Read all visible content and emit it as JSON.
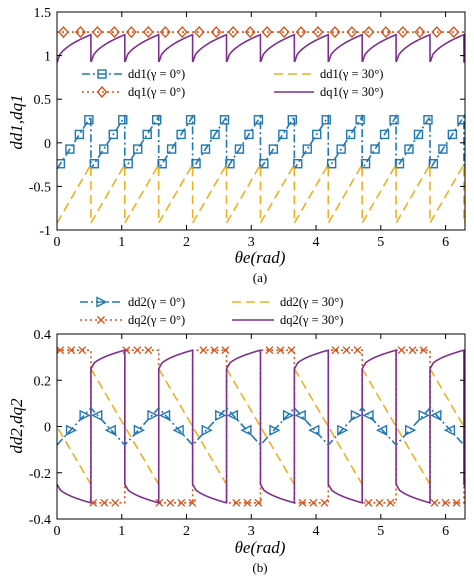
{
  "chart_data": [
    {
      "type": "line",
      "panel_label": "(a)",
      "xlabel": "θe(rad)",
      "ylabel": "dd1,dq1",
      "xlim": [
        0,
        6.3
      ],
      "ylim": [
        -1,
        1.5
      ],
      "xticks": [
        "0",
        "1",
        "2",
        "3",
        "4",
        "5",
        "6"
      ],
      "yticks": [
        "-1",
        "-0.5",
        "0",
        "0.5",
        "1",
        "1.5"
      ],
      "grid": false,
      "legend_placement": "middle",
      "sector_period_rad": 0.5236,
      "series": [
        {
          "name": "dd1(γ = 0°)",
          "color": "#1f77b4",
          "style": "dashdot",
          "marker": "square",
          "sector_start": -0.3,
          "sector_end": 0.3,
          "sector_offset": 0.0
        },
        {
          "name": "dq1(γ = 0°)",
          "color": "#d9541a",
          "style": "dotted",
          "marker": "diamond",
          "constant": 1.27
        },
        {
          "name": "dd1(γ = 30°)",
          "color": "#edb120",
          "style": "dashed",
          "marker": "none",
          "sector_start": -0.92,
          "sector_end": -0.25,
          "sector_offset": 0.0
        },
        {
          "name": "dq1(γ = 30°)",
          "color": "#7e2f8e",
          "style": "solid",
          "marker": "none",
          "sector_start": 0.92,
          "sector_end": 1.24,
          "sector_offset": 0.0,
          "shape": "concave"
        }
      ],
      "legend": {
        "entries": [
          {
            "text": "dd1(γ = 0°)",
            "series": 0
          },
          {
            "text": "dd1(γ = 30°)",
            "series": 2
          },
          {
            "text": "dq1(γ = 0°)",
            "series": 1
          },
          {
            "text": "dq1(γ = 30°)",
            "series": 3
          }
        ]
      }
    },
    {
      "type": "line",
      "panel_label": "(b)",
      "xlabel": "θe(rad)",
      "ylabel": "dd2,dq2",
      "xlim": [
        0,
        6.3
      ],
      "ylim": [
        -0.4,
        0.4
      ],
      "xticks": [
        "0",
        "1",
        "2",
        "3",
        "4",
        "5",
        "6"
      ],
      "yticks": [
        "-0.4",
        "-0.2",
        "0",
        "0.2",
        "0.4"
      ],
      "grid": false,
      "legend_placement": "above",
      "sector_period_rad": 1.0472,
      "series": [
        {
          "name": "dd2(γ = 0°)",
          "color": "#1f77b4",
          "style": "dashdot",
          "marker": "triangle",
          "triangle_min": -0.08,
          "triangle_max": 0.08
        },
        {
          "name": "dq2(γ = 0°)",
          "color": "#d9541a",
          "style": "dotted",
          "marker": "x",
          "square_high": 0.33,
          "square_low": -0.33
        },
        {
          "name": "dd2(γ = 30°)",
          "color": "#edb120",
          "style": "dashed",
          "marker": "none",
          "sector_start": 0.25,
          "sector_end": -0.25
        },
        {
          "name": "dq2(γ = 30°)",
          "color": "#7e2f8e",
          "style": "solid",
          "marker": "none",
          "sector_start": -0.25,
          "sector_end": -0.33,
          "after_jump_start": 0.25,
          "after_jump_end": 0.33
        }
      ],
      "legend": {
        "entries": [
          {
            "text": "dd2(γ = 0°)",
            "series": 0
          },
          {
            "text": "dd2(γ = 30°)",
            "series": 2
          },
          {
            "text": "dq2(γ = 0°)",
            "series": 1
          },
          {
            "text": "dq2(γ = 30°)",
            "series": 3
          }
        ]
      }
    }
  ]
}
